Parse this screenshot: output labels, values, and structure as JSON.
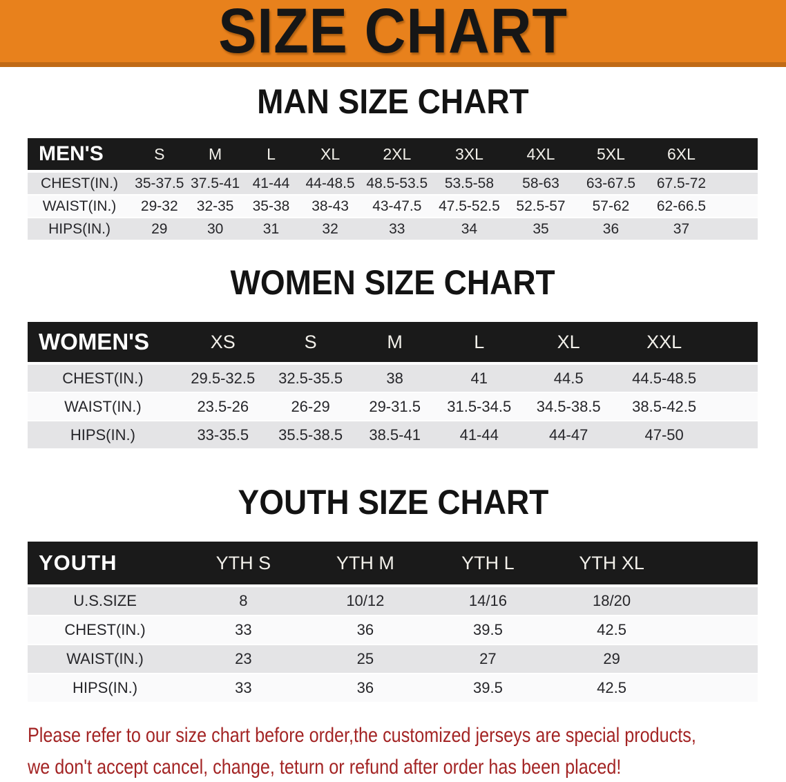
{
  "banner": {
    "title": "SIZE CHART"
  },
  "sections": [
    {
      "heading": "MAN SIZE CHART",
      "table": {
        "header_label": "MEN'S",
        "columns": [
          "S",
          "M",
          "L",
          "XL",
          "2XL",
          "3XL",
          "4XL",
          "5XL",
          "6XL"
        ],
        "rows": [
          {
            "label": "CHEST(IN.)",
            "values": [
              "35-37.5",
              "37.5-41",
              "41-44",
              "44-48.5",
              "48.5-53.5",
              "53.5-58",
              "58-63",
              "63-67.5",
              "67.5-72"
            ]
          },
          {
            "label": "WAIST(IN.)",
            "values": [
              "29-32",
              "32-35",
              "35-38",
              "38-43",
              "43-47.5",
              "47.5-52.5",
              "52.5-57",
              "57-62",
              "62-66.5"
            ]
          },
          {
            "label": "HIPS(IN.)",
            "values": [
              "29",
              "30",
              "31",
              "32",
              "33",
              "34",
              "35",
              "36",
              "37"
            ]
          }
        ]
      }
    },
    {
      "heading": "WOMEN SIZE CHART",
      "table": {
        "header_label": "WOMEN'S",
        "columns": [
          "XS",
          "S",
          "M",
          "L",
          "XL",
          "XXL"
        ],
        "rows": [
          {
            "label": "CHEST(IN.)",
            "values": [
              "29.5-32.5",
              "32.5-35.5",
              "38",
              "41",
              "44.5",
              "44.5-48.5"
            ]
          },
          {
            "label": "WAIST(IN.)",
            "values": [
              "23.5-26",
              "26-29",
              "29-31.5",
              "31.5-34.5",
              "34.5-38.5",
              "38.5-42.5"
            ]
          },
          {
            "label": "HIPS(IN.)",
            "values": [
              "33-35.5",
              "35.5-38.5",
              "38.5-41",
              "41-44",
              "44-47",
              "47-50"
            ]
          }
        ]
      }
    },
    {
      "heading": "YOUTH SIZE CHART",
      "table": {
        "header_label": "YOUTH",
        "columns": [
          "YTH S",
          "YTH M",
          "YTH L",
          "YTH XL"
        ],
        "rows": [
          {
            "label": "U.S.SIZE",
            "values": [
              "8",
              "10/12",
              "14/16",
              "18/20"
            ]
          },
          {
            "label": "CHEST(IN.)",
            "values": [
              "33",
              "36",
              "39.5",
              "42.5"
            ]
          },
          {
            "label": "WAIST(IN.)",
            "values": [
              "23",
              "25",
              "27",
              "29"
            ]
          },
          {
            "label": "HIPS(IN.)",
            "values": [
              "33",
              "36",
              "39.5",
              "42.5"
            ]
          }
        ]
      }
    }
  ],
  "footer": {
    "line1": "Please refer to our size chart before order,the customized jerseys are special products,",
    "line2": "we don't accept cancel, change, teturn or refund after order has been placed!"
  },
  "colors": {
    "banner_bg": "#E8811C",
    "banner_edge": "#C06A15",
    "header_bar_bg": "#1A1A1A",
    "row_gray": "#E4E4E6",
    "row_white": "#FAFAFB",
    "footer_red": "#A32424"
  }
}
